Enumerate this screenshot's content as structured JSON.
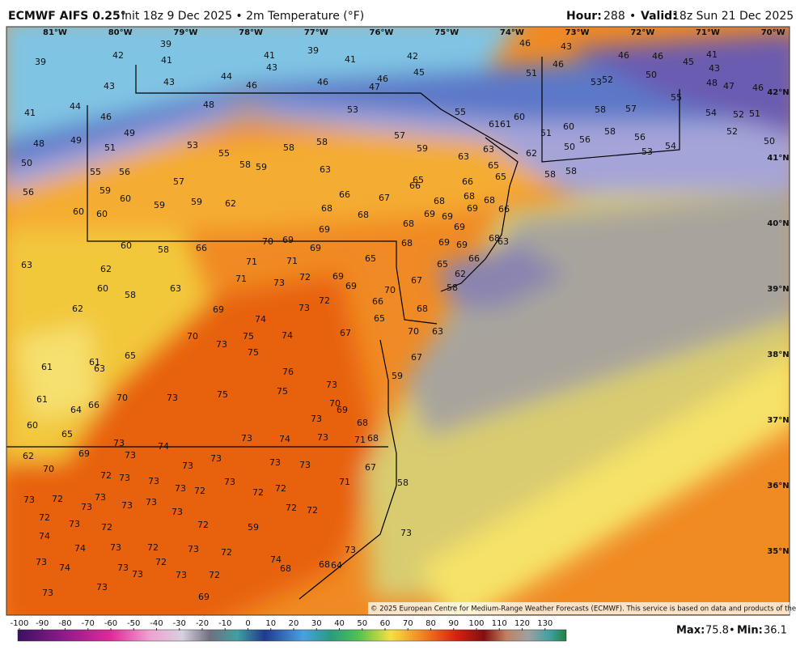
{
  "header": {
    "title": "ECMWF AIFS 0.25°",
    "subtitle": "Init 18z 9 Dec 2025 • 2m Temperature (°F)",
    "hour_label": "Hour:",
    "hour": "288",
    "separator": "•",
    "valid_label": "Valid:",
    "valid": "18z Sun 21 Dec 2025"
  },
  "map": {
    "longitudes": [
      "81°W",
      "80°W",
      "79°W",
      "78°W",
      "77°W",
      "76°W",
      "75°W",
      "74°W",
      "73°W",
      "72°W",
      "71°W",
      "70°W"
    ],
    "latitudes": [
      "42°N",
      "41°N",
      "40°N",
      "39°N",
      "38°N",
      "37°N",
      "36°N",
      "35°N"
    ],
    "labels": [
      39,
      39,
      42,
      41,
      43,
      43,
      44,
      46,
      41,
      43,
      39,
      46,
      41,
      47,
      46,
      42,
      45,
      46,
      43,
      46,
      51,
      46,
      46,
      45,
      41,
      43,
      48,
      47,
      46,
      53,
      52,
      50,
      55,
      54,
      52,
      51,
      52,
      50,
      41,
      44,
      46,
      48,
      53,
      55,
      61,
      61,
      60,
      58,
      57,
      60,
      51,
      58,
      56,
      56,
      50,
      53,
      54,
      49,
      48,
      49,
      51,
      53,
      55,
      58,
      58,
      57,
      59,
      63,
      63,
      62,
      65,
      65,
      58,
      58,
      50,
      55,
      56,
      58,
      59,
      63,
      57,
      65,
      66,
      66,
      56,
      59,
      60,
      59,
      59,
      62,
      66,
      67,
      68,
      68,
      68,
      66,
      69,
      69,
      69,
      60,
      60,
      68,
      68,
      68,
      69,
      69,
      70,
      69,
      69,
      68,
      69,
      69,
      68,
      63,
      60,
      58,
      66,
      71,
      71,
      65,
      65,
      66,
      63,
      62,
      72,
      71,
      73,
      69,
      69,
      67,
      62,
      58,
      70,
      60,
      58,
      63,
      72,
      73,
      66,
      68,
      62,
      69,
      74,
      65,
      70,
      75,
      74,
      67,
      70,
      63,
      73,
      75,
      65,
      61,
      63,
      61,
      67,
      76,
      73,
      59,
      70,
      73,
      75,
      75,
      70,
      69,
      61,
      64,
      66,
      73,
      68,
      60,
      65,
      73,
      74,
      73,
      71,
      68,
      73,
      74,
      69,
      62,
      73,
      73,
      73,
      73,
      73,
      67,
      70,
      72,
      73,
      73,
      73,
      72,
      73,
      72,
      72,
      71,
      58,
      73,
      72,
      73,
      73,
      73,
      73,
      73,
      72,
      72,
      72,
      73,
      72,
      72,
      59,
      73,
      74,
      74,
      73,
      72,
      73,
      72,
      74,
      68,
      68,
      64,
      73,
      73,
      74,
      73,
      73,
      72,
      73,
      72,
      73,
      73,
      69
    ],
    "copyright": "© 2025 European Centre for Medium-Range Weather Forecasts (ECMWF). This service is based on data and products of the ECMWF."
  },
  "colorbar": {
    "ticks": [
      -100,
      -90,
      -80,
      -70,
      -60,
      -50,
      -40,
      -30,
      -20,
      -10,
      0,
      10,
      20,
      30,
      40,
      50,
      60,
      70,
      80,
      90,
      100,
      110,
      120,
      130
    ]
  },
  "stats": {
    "max_label": "Max:",
    "max": 75.8,
    "separator": "•",
    "min_label": "Min:",
    "min": 36.1
  }
}
